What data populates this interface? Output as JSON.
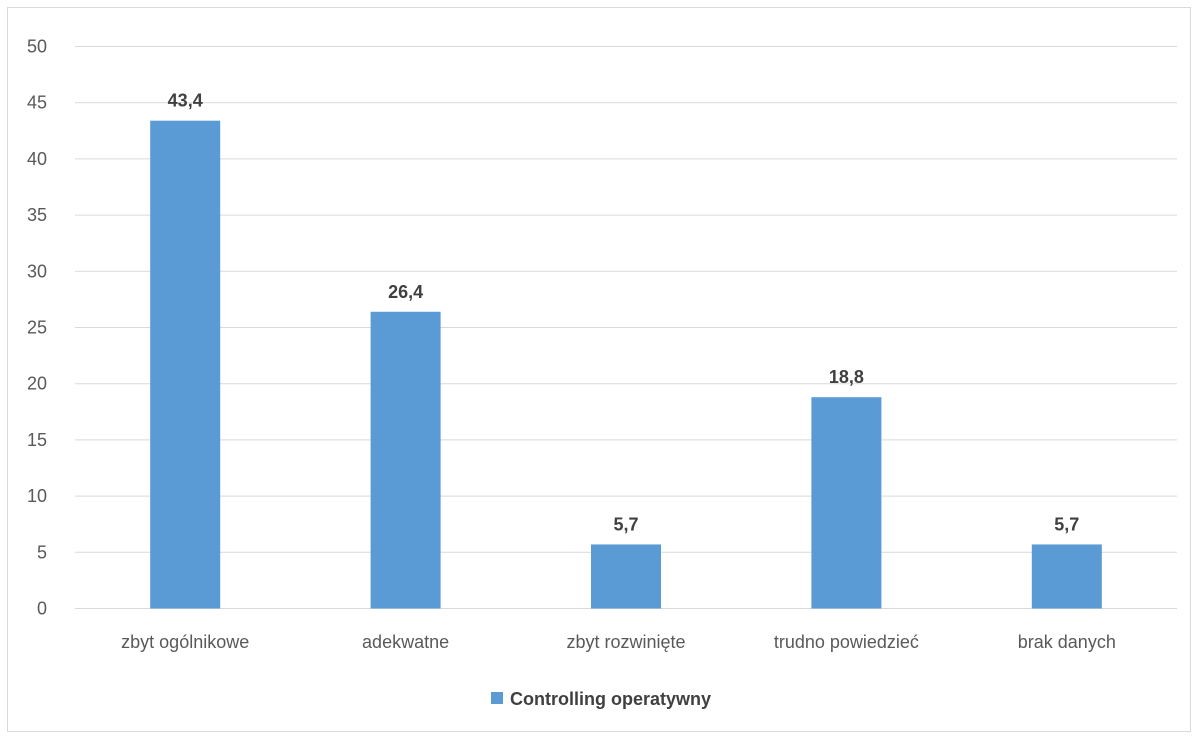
{
  "chart_data": {
    "type": "bar",
    "title": "",
    "xlabel": "",
    "ylabel": "",
    "categories": [
      "zbyt ogólnikowe",
      "adekwatne",
      "zbyt rozwinięte",
      "trudno powiedzieć",
      "brak danych"
    ],
    "series": [
      {
        "name": "Controlling operatywny",
        "values": [
          43.4,
          26.4,
          5.7,
          18.8,
          5.7
        ],
        "value_labels": [
          "43,4",
          "26,4",
          "5,7",
          "18,8",
          "5,7"
        ],
        "color": "#5b9bd5"
      }
    ],
    "ylim": [
      0,
      50
    ],
    "yticks": [
      "0",
      "5",
      "10",
      "15",
      "20",
      "25",
      "30",
      "35",
      "40",
      "45",
      "50"
    ],
    "grid": true,
    "legend_position": "bottom"
  },
  "colors": {
    "bar": "#5b9bd5",
    "gridline": "#d9d9d9",
    "axis": "#d9d9d9"
  }
}
